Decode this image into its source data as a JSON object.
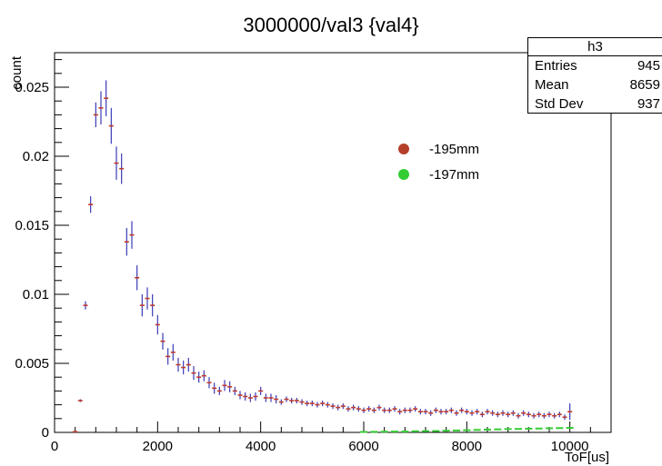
{
  "chart_data": {
    "type": "scatter",
    "title": "3000000/val3 {val4}",
    "xlabel": "ToF[us]",
    "ylabel": "count",
    "xlim": [
      0,
      10800
    ],
    "ylim": [
      0,
      0.0275
    ],
    "x_ticks": [
      {
        "value": 0,
        "label": "0"
      },
      {
        "value": 2000,
        "label": "2000"
      },
      {
        "value": 4000,
        "label": "4000"
      },
      {
        "value": 6000,
        "label": "6000"
      },
      {
        "value": 8000,
        "label": "8000"
      },
      {
        "value": 10000,
        "label": "10000"
      }
    ],
    "y_ticks": [
      {
        "value": 0,
        "label": "0"
      },
      {
        "value": 0.005,
        "label": "0.005"
      },
      {
        "value": 0.01,
        "label": "0.01"
      },
      {
        "value": 0.015,
        "label": "0.015"
      },
      {
        "value": 0.02,
        "label": "0.02"
      },
      {
        "value": 0.025,
        "label": "0.025"
      }
    ],
    "grid": false,
    "legend_position": "upper-right",
    "stats": {
      "title": "h3",
      "rows": [
        {
          "label": "Entries",
          "value": "945"
        },
        {
          "label": "Mean",
          "value": "8659"
        },
        {
          "label": "Std Dev",
          "value": "937"
        }
      ]
    },
    "series": [
      {
        "name": "-195mm",
        "color": "#b5402a",
        "marker_color": "#c0392b",
        "errorbar_color": "#3b3bb8",
        "x": [
          400,
          500,
          600,
          700,
          800,
          900,
          1000,
          1100,
          1200,
          1300,
          1400,
          1500,
          1600,
          1700,
          1800,
          1900,
          2000,
          2100,
          2200,
          2300,
          2400,
          2500,
          2600,
          2700,
          2800,
          2900,
          3000,
          3100,
          3200,
          3300,
          3400,
          3500,
          3600,
          3700,
          3800,
          3900,
          4000,
          4100,
          4200,
          4300,
          4400,
          4500,
          4600,
          4700,
          4800,
          4900,
          5000,
          5100,
          5200,
          5300,
          5400,
          5500,
          5600,
          5700,
          5800,
          5900,
          6000,
          6100,
          6200,
          6300,
          6400,
          6500,
          6600,
          6700,
          6800,
          6900,
          7000,
          7100,
          7200,
          7300,
          7400,
          7500,
          7600,
          7700,
          7800,
          7900,
          8000,
          8100,
          8200,
          8300,
          8400,
          8500,
          8600,
          8700,
          8800,
          8900,
          9000,
          9100,
          9200,
          9300,
          9400,
          9500,
          9600,
          9700,
          9800,
          9900,
          10000
        ],
        "y": [
          5e-05,
          0.0023,
          0.0092,
          0.0165,
          0.023,
          0.0235,
          0.0242,
          0.0222,
          0.0195,
          0.0191,
          0.0138,
          0.0143,
          0.0112,
          0.0092,
          0.0097,
          0.0092,
          0.0078,
          0.0066,
          0.0055,
          0.0058,
          0.0049,
          0.0047,
          0.0049,
          0.0043,
          0.004,
          0.0041,
          0.0036,
          0.0032,
          0.003,
          0.0034,
          0.0033,
          0.003,
          0.0027,
          0.0026,
          0.0025,
          0.0026,
          0.003,
          0.0025,
          0.0025,
          0.0024,
          0.0022,
          0.0024,
          0.0023,
          0.0023,
          0.0022,
          0.0021,
          0.0021,
          0.002,
          0.0021,
          0.002,
          0.0019,
          0.0018,
          0.0019,
          0.0017,
          0.0018,
          0.0017,
          0.0016,
          0.0017,
          0.0016,
          0.0018,
          0.0016,
          0.0016,
          0.0017,
          0.0015,
          0.0016,
          0.0016,
          0.0017,
          0.0015,
          0.0015,
          0.0014,
          0.0016,
          0.0015,
          0.0015,
          0.0016,
          0.0014,
          0.0016,
          0.0015,
          0.0014,
          0.0015,
          0.0013,
          0.0015,
          0.0014,
          0.0013,
          0.0014,
          0.0013,
          0.0014,
          0.0012,
          0.0014,
          0.0013,
          0.0012,
          0.0013,
          0.0012,
          0.0013,
          0.0012,
          0.0013,
          0.0011,
          0.0015
        ],
        "err": [
          5e-05,
          0.0001,
          0.0003,
          0.0006,
          0.0009,
          0.0012,
          0.0013,
          0.0013,
          0.0012,
          0.0011,
          0.001,
          0.001,
          0.0009,
          0.0008,
          0.0008,
          0.0008,
          0.0007,
          0.0006,
          0.0006,
          0.0006,
          0.0005,
          0.0005,
          0.0005,
          0.0005,
          0.0004,
          0.0004,
          0.0004,
          0.0004,
          0.0003,
          0.0004,
          0.0004,
          0.0003,
          0.0003,
          0.0003,
          0.0003,
          0.0003,
          0.0003,
          0.0003,
          0.0003,
          0.0003,
          0.0002,
          0.0002,
          0.0002,
          0.0002,
          0.0002,
          0.0002,
          0.0002,
          0.0002,
          0.0002,
          0.0002,
          0.0002,
          0.0002,
          0.0002,
          0.0002,
          0.0002,
          0.0002,
          0.0002,
          0.0002,
          0.0002,
          0.0002,
          0.0002,
          0.0002,
          0.0002,
          0.0002,
          0.0002,
          0.0002,
          0.0002,
          0.0002,
          0.0002,
          0.0002,
          0.0002,
          0.0002,
          0.0002,
          0.0002,
          0.0002,
          0.0002,
          0.0002,
          0.0002,
          0.0002,
          0.0002,
          0.0002,
          0.0002,
          0.0002,
          0.0002,
          0.0002,
          0.0002,
          0.0002,
          0.0002,
          0.0002,
          0.0002,
          0.0002,
          0.0002,
          0.0002,
          0.0002,
          0.0002,
          0.0002,
          0.0006
        ]
      },
      {
        "name": "-197mm",
        "color": "#33cc33",
        "x": [
          6000,
          6200,
          6400,
          6600,
          6800,
          7000,
          7200,
          7400,
          7600,
          7800,
          8000,
          8200,
          8400,
          8600,
          8800,
          9000,
          9200,
          9400,
          9600,
          9800,
          10000
        ],
        "y": [
          3e-05,
          4e-05,
          5e-05,
          6e-05,
          6e-05,
          8e-05,
          9e-05,
          0.0001,
          0.00012,
          0.00014,
          0.00016,
          0.00018,
          0.0002,
          0.00022,
          0.00024,
          0.00025,
          0.00027,
          0.00028,
          0.0003,
          0.00031,
          0.00033
        ]
      }
    ]
  }
}
